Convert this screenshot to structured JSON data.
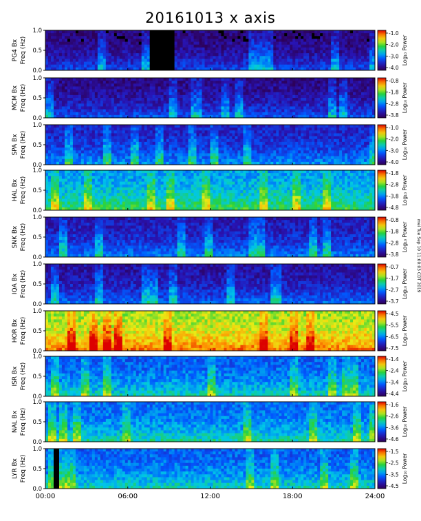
{
  "title": "20161013 x axis",
  "side_note": "mei Tue Sep 10 11:00:03 CDT 2019",
  "chart_data": {
    "type": "heatmap",
    "x_ticks": [
      "00:00",
      "06:00",
      "12:00",
      "18:00",
      "24:00"
    ],
    "xlim_hours": [
      0,
      24
    ],
    "y_ticks": [
      "0.0",
      "0.5",
      "1.0"
    ],
    "ylim_hz": [
      0,
      1.0
    ],
    "colorbar_label": "Log₁₀ Power",
    "panels": [
      {
        "station": "PG4 Bx",
        "ylabel": "Freq (Hz)",
        "cb_ticks": [
          "-1.0",
          "-2.0",
          "-3.0",
          "-4.0"
        ],
        "base_level": 0.06,
        "data_gap_hours": [
          [
            7.6,
            9.4
          ]
        ]
      },
      {
        "station": "MCM Bx",
        "ylabel": "Freq (Hz)",
        "cb_ticks": [
          "-0.8",
          "-1.8",
          "-2.8",
          "-3.8"
        ],
        "base_level": 0.08,
        "data_gap_hours": []
      },
      {
        "station": "SPA Bx",
        "ylabel": "Freq (Hz)",
        "cb_ticks": [
          "-1.0",
          "-2.0",
          "-3.0",
          "-4.0"
        ],
        "base_level": 0.18,
        "data_gap_hours": []
      },
      {
        "station": "HAL Bx",
        "ylabel": "Freq (Hz)",
        "cb_ticks": [
          "-1.8",
          "-2.8",
          "-3.8",
          "-4.8"
        ],
        "base_level": 0.4,
        "data_gap_hours": []
      },
      {
        "station": "SNK Bx",
        "ylabel": "Freq (Hz)",
        "cb_ticks": [
          "-0.8",
          "-1.8",
          "-2.8",
          "-3.8"
        ],
        "base_level": 0.15,
        "data_gap_hours": []
      },
      {
        "station": "IQA Bx",
        "ylabel": "Freq (Hz)",
        "cb_ticks": [
          "-0.7",
          "-1.7",
          "-2.7",
          "-3.7"
        ],
        "base_level": 0.12,
        "data_gap_hours": []
      },
      {
        "station": "HOR Bx",
        "ylabel": "Freq (Hz)",
        "cb_ticks": [
          "-4.5",
          "-5.5",
          "-6.5",
          "-7.5"
        ],
        "base_level": 0.7,
        "data_gap_hours": []
      },
      {
        "station": "ISR Bx",
        "ylabel": "Freq (Hz)",
        "cb_ticks": [
          "-1.4",
          "-2.4",
          "-3.4",
          "-4.4"
        ],
        "base_level": 0.3,
        "data_gap_hours": []
      },
      {
        "station": "NAL Bx",
        "ylabel": "Freq (Hz)",
        "cb_ticks": [
          "-1.6",
          "-2.6",
          "-3.6",
          "-4.6"
        ],
        "base_level": 0.32,
        "data_gap_hours": []
      },
      {
        "station": "LYR Bx",
        "ylabel": "Freq (Hz)",
        "cb_ticks": [
          "-1.5",
          "-2.5",
          "-3.5",
          "-4.5"
        ],
        "base_level": 0.3,
        "data_gap_hours": [
          [
            0.6,
            0.9
          ]
        ]
      }
    ]
  }
}
